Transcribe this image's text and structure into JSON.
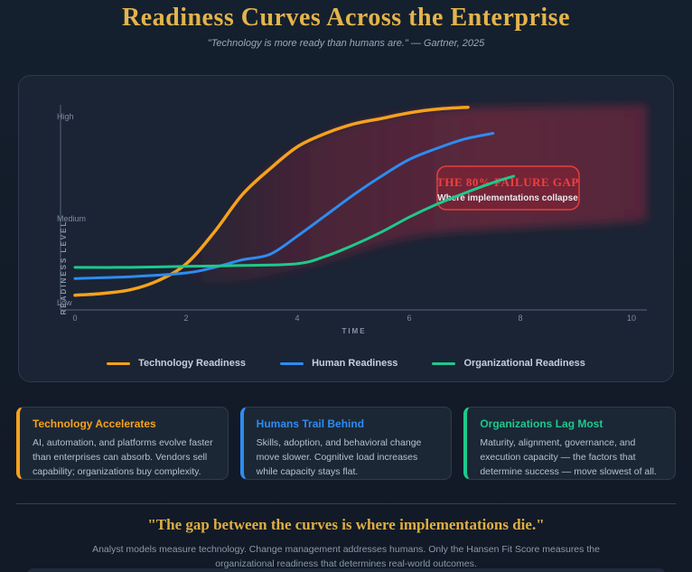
{
  "header": {
    "title": "Readiness Curves Across the Enterprise",
    "subtitle": "\"Technology is more ready than humans are.\" — Gartner, 2025"
  },
  "chart": {
    "y_axis_label": "READINESS LEVEL",
    "x_axis_label": "TIME",
    "y_ticks": [
      "High",
      "Medium",
      "Low"
    ],
    "x_ticks": [
      "0",
      "2",
      "4",
      "6",
      "8",
      "10"
    ],
    "annotation": {
      "title": "THE 80% FAILURE GAP",
      "subtitle": "Where implementations collapse"
    },
    "legend": [
      {
        "label": "Technology Readiness"
      },
      {
        "label": "Human Readiness"
      },
      {
        "label": "Organizational Readiness"
      }
    ]
  },
  "chart_data": {
    "type": "line",
    "title": "Readiness Curves Across the Enterprise",
    "xlabel": "TIME",
    "ylabel": "READINESS LEVEL",
    "xlim": [
      0,
      10.5
    ],
    "ylim": [
      0,
      1.1
    ],
    "x_ticks": [
      0,
      2,
      4,
      6,
      8,
      10
    ],
    "y_tick_labels": {
      "0": "Low",
      "0.5": "Medium",
      "1": "High"
    },
    "grid": false,
    "legend_position": "bottom",
    "series": [
      {
        "name": "Technology Readiness",
        "color": "#f6a21c",
        "points": [
          [
            0,
            0.04
          ],
          [
            0.5,
            0.05
          ],
          [
            1,
            0.07
          ],
          [
            1.5,
            0.12
          ],
          [
            2,
            0.21
          ],
          [
            2.5,
            0.38
          ],
          [
            3,
            0.58
          ],
          [
            3.5,
            0.72
          ],
          [
            4,
            0.84
          ],
          [
            4.5,
            0.91
          ],
          [
            5,
            0.96
          ],
          [
            5.5,
            0.99
          ],
          [
            6,
            1.02
          ],
          [
            6.5,
            1.04
          ],
          [
            7.05,
            1.05
          ]
        ]
      },
      {
        "name": "Human Readiness",
        "color": "#2e8cf0",
        "points": [
          [
            0,
            0.13
          ],
          [
            1,
            0.14
          ],
          [
            2,
            0.16
          ],
          [
            2.5,
            0.19
          ],
          [
            3,
            0.23
          ],
          [
            3.5,
            0.26
          ],
          [
            4,
            0.36
          ],
          [
            4.5,
            0.47
          ],
          [
            5,
            0.58
          ],
          [
            5.5,
            0.68
          ],
          [
            6,
            0.77
          ],
          [
            6.5,
            0.83
          ],
          [
            7,
            0.88
          ],
          [
            7.5,
            0.91
          ]
        ]
      },
      {
        "name": "Organizational Readiness",
        "color": "#1ec98c",
        "points": [
          [
            0,
            0.19
          ],
          [
            1,
            0.19
          ],
          [
            2,
            0.195
          ],
          [
            3,
            0.2
          ],
          [
            4,
            0.21
          ],
          [
            4.5,
            0.25
          ],
          [
            5,
            0.31
          ],
          [
            5.5,
            0.38
          ],
          [
            6,
            0.46
          ],
          [
            6.5,
            0.53
          ],
          [
            7,
            0.59
          ],
          [
            7.5,
            0.645
          ],
          [
            7.87,
            0.68
          ]
        ]
      }
    ],
    "annotation": {
      "label": "THE 80% FAILURE GAP",
      "sublabel": "Where implementations collapse",
      "x_range": [
        2,
        10.3
      ],
      "description": "shaded red gap region between Technology and Organizational readiness curves"
    }
  },
  "cards": [
    {
      "title": "Technology Accelerates",
      "accent": "#f6a21c",
      "body": "AI, automation, and platforms evolve faster than enterprises can absorb. Vendors sell capability; organizations buy complexity."
    },
    {
      "title": "Humans Trail Behind",
      "accent": "#2e8cf0",
      "body": "Skills, adoption, and behavioral change move slower. Cognitive load increases while capacity stays flat."
    },
    {
      "title": "Organizations Lag Most",
      "accent": "#1ec98c",
      "body": "Maturity, alignment, governance, and execution capacity — the factors that determine success — move slowest of all."
    }
  ],
  "footer": {
    "quote": "\"The gap between the curves is where implementations die.\"",
    "text": "Analyst models measure technology. Change management addresses humans. Only the Hansen Fit Score measures the organizational readiness that determines real-world outcomes."
  },
  "colors": {
    "background": "#131d2a",
    "panel": "#1a2434",
    "gold": "#e3b44c",
    "gap_red": "#a12744",
    "annotation_border": "#e53e3e"
  }
}
